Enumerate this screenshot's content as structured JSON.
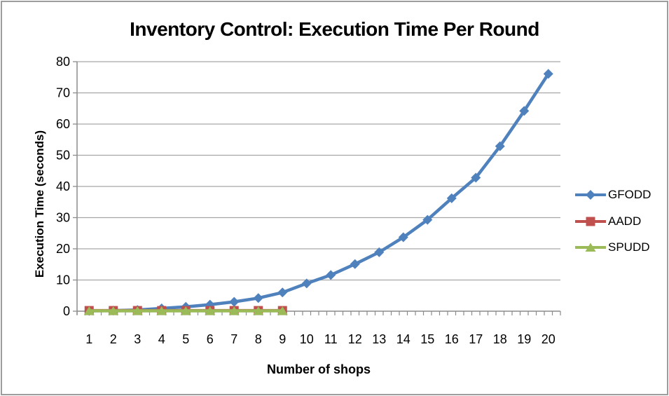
{
  "title": "Inventory Control: Execution Time Per Round",
  "colors": {
    "gridline": "#a6a6a6",
    "axis": "#8c8c8c",
    "frame_border": "#9d9d9d",
    "background": "#ffffff",
    "text": "#000000",
    "gfodd_blue": "#4f81bd",
    "aadd_red": "#c0504d",
    "spudd_green": "#9bbb59"
  },
  "chart_data": {
    "type": "line",
    "title": "Inventory Control: Execution Time Per Round",
    "xlabel": "Number of shops",
    "ylabel": "Execution Time (seconds)",
    "x": [
      1,
      2,
      3,
      4,
      5,
      6,
      7,
      8,
      9,
      10,
      11,
      12,
      13,
      14,
      15,
      16,
      17,
      18,
      19,
      20
    ],
    "y_ticks": [
      0,
      10,
      20,
      30,
      40,
      50,
      60,
      70,
      80
    ],
    "ylim": [
      0,
      80
    ],
    "grid": "horizontal",
    "legend_position": "right",
    "series": [
      {
        "name": "GFODD",
        "color": "#4f81bd",
        "marker": "diamond",
        "values": [
          0.1,
          0.2,
          0.4,
          0.9,
          1.4,
          2.1,
          3.0,
          4.2,
          6.0,
          8.9,
          11.6,
          15.1,
          18.9,
          23.7,
          29.3,
          36.2,
          42.8,
          52.9,
          64.2,
          76.1
        ]
      },
      {
        "name": "AADD",
        "color": "#c0504d",
        "marker": "square",
        "values": [
          0.2,
          0.2,
          0.2,
          0.2,
          0.2,
          0.2,
          0.2,
          0.2,
          0.2
        ]
      },
      {
        "name": "SPUDD",
        "color": "#9bbb59",
        "marker": "triangle",
        "values": [
          0.1,
          0.1,
          0.1,
          0.1,
          0.1,
          0.1,
          0.1,
          0.1,
          0.1
        ]
      }
    ]
  }
}
